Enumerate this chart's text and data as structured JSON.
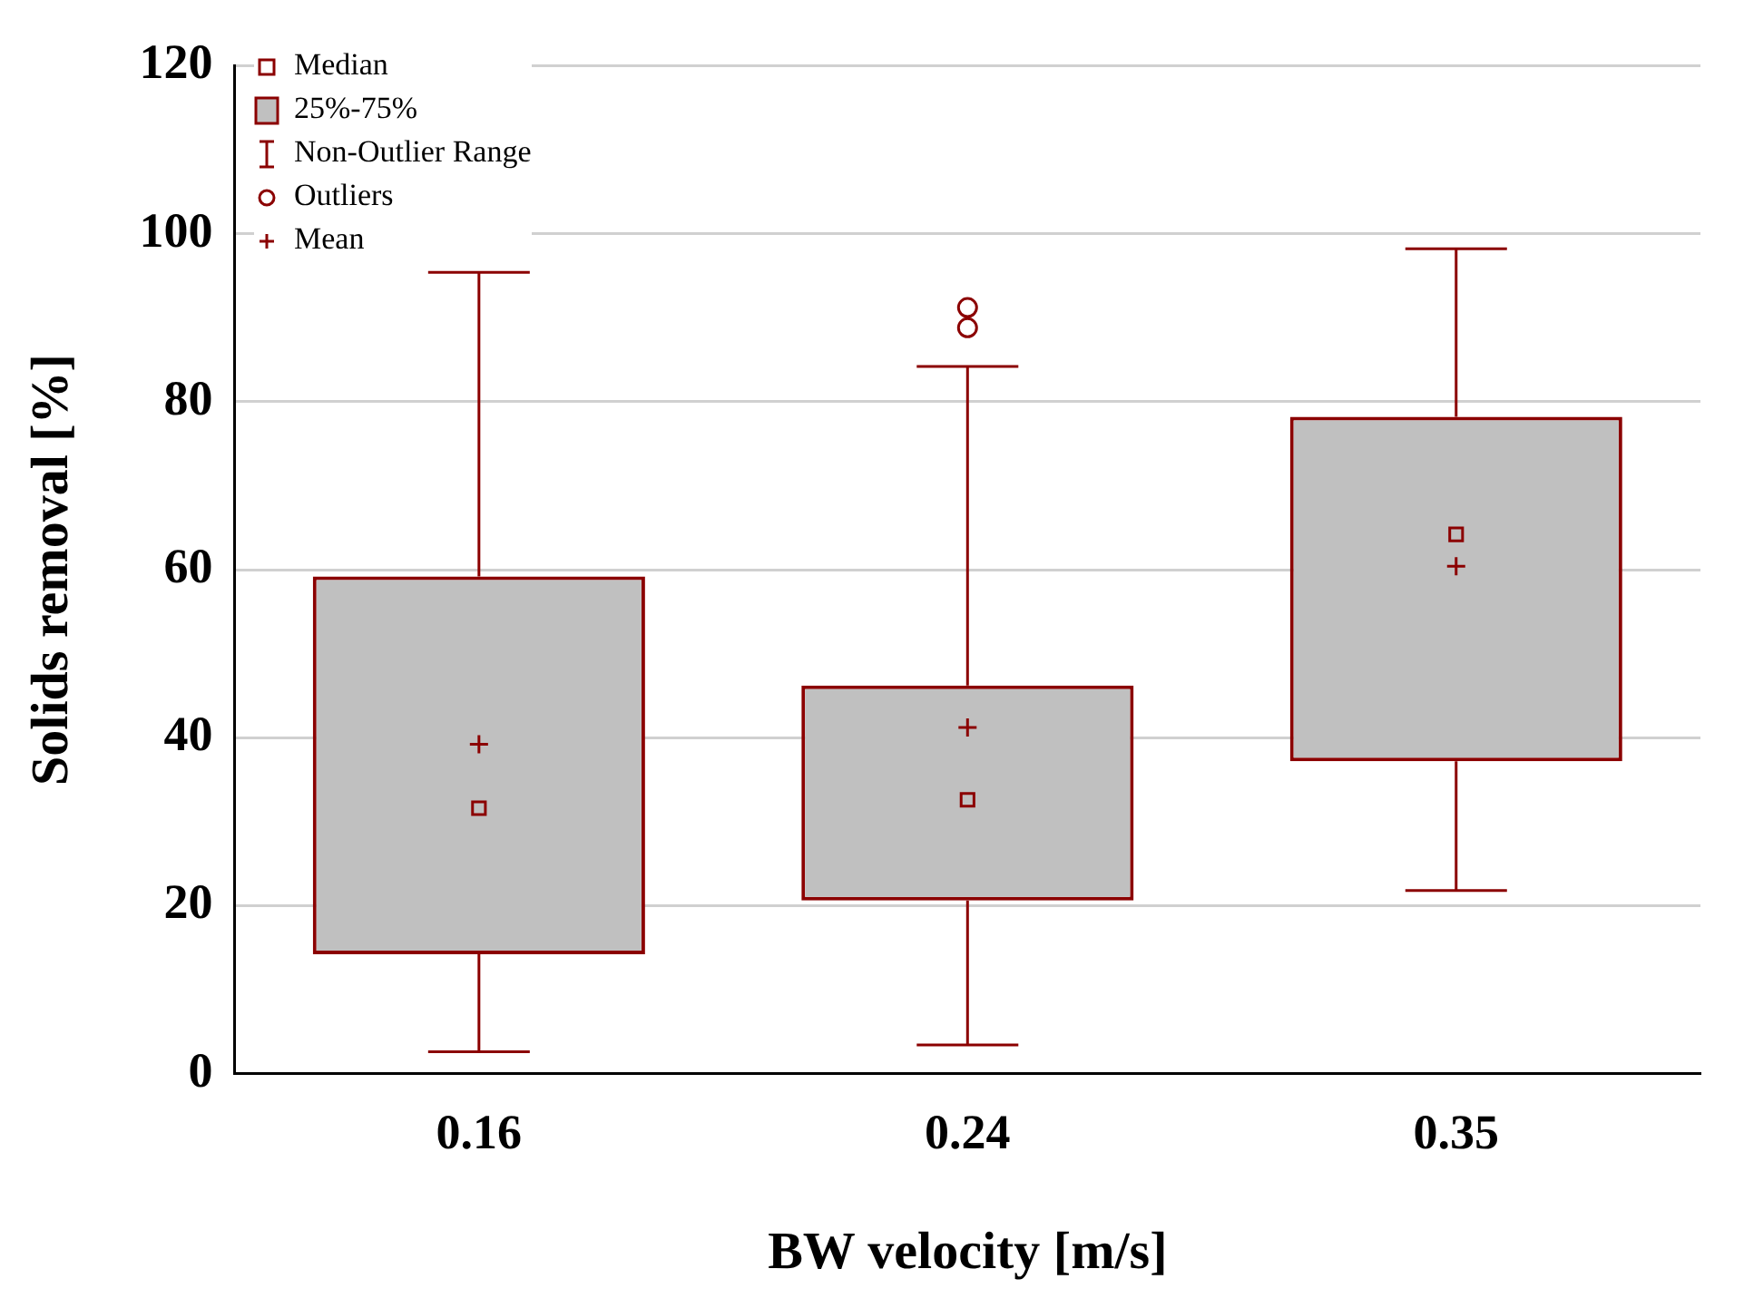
{
  "chart_data": {
    "type": "box",
    "xlabel": "BW velocity [m/s]",
    "ylabel": "Solids removal [%]",
    "categories": [
      "0.16",
      "0.24",
      "0.35"
    ],
    "boxes": [
      {
        "low": 2.6,
        "q1": 14.2,
        "median": 31.6,
        "q3": 59.2,
        "high": 95.4,
        "mean": 39.2
      },
      {
        "low": 3.4,
        "q1": 20.6,
        "median": 32.6,
        "q3": 46.2,
        "high": 84.2,
        "mean": 41.2,
        "outliers": [
          91.2,
          88.8
        ]
      },
      {
        "low": 21.8,
        "q1": 37.2,
        "median": 64.2,
        "q3": 78.2,
        "high": 98.2,
        "mean": 60.4
      }
    ],
    "color": "#8b0000",
    "ylim": [
      0,
      120
    ],
    "yticks": [
      0,
      20,
      40,
      60,
      80,
      100,
      120
    ],
    "grid": "y",
    "annotations": [
      "Median",
      "25%-75%",
      "Non-Outlier Range",
      "Outliers",
      "Mean"
    ]
  }
}
